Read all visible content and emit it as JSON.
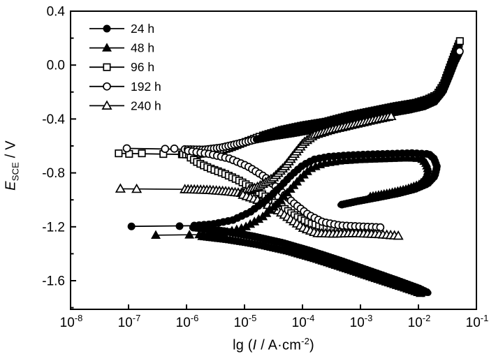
{
  "figure": {
    "background": "#ffffff",
    "accent": "#000000",
    "xlabel_parts": {
      "pre": "lg (",
      "sym": "I",
      "mid": " / A·cm",
      "sup": "-2",
      "post": ")"
    },
    "ylabel_parts": {
      "sym": "E",
      "sub": "SCE",
      "post": " / V"
    }
  },
  "legend": {
    "position": "top-left",
    "items": [
      {
        "label": "24 h",
        "marker": "circle",
        "open": false
      },
      {
        "label": "48 h",
        "marker": "triangle",
        "open": false
      },
      {
        "label": "96 h",
        "marker": "square",
        "open": true
      },
      {
        "label": "192 h",
        "marker": "circle",
        "open": true
      },
      {
        "label": "240 h",
        "marker": "triangle",
        "open": true
      }
    ]
  },
  "chart_data": {
    "type": "line",
    "title": "",
    "xlabel": "lg (I / A·cm⁻²)",
    "ylabel": "E_SCE / V",
    "x_scale": "log10",
    "xlim_exponents": [
      -8,
      -1
    ],
    "ylim": [
      -1.8,
      0.4
    ],
    "grid": false,
    "xticks": [
      -8,
      -7,
      -6,
      -5,
      -4,
      -3,
      -2,
      -1
    ],
    "yticks_major": [
      0.4,
      0.0,
      -0.4,
      -0.8,
      -1.2,
      -1.6
    ],
    "ytick_labels": [
      "0.4",
      "0.0",
      "-0.4",
      "-0.8",
      "-1.2",
      "-1.6"
    ],
    "yticks_minor": [
      0.2,
      -0.2,
      -0.6,
      -1.0,
      -1.4,
      -1.8
    ],
    "series": [
      {
        "name": "96 h",
        "key": "96h",
        "marker": "square",
        "open": true,
        "segments": [
          {
            "role": "ocp-line",
            "pts": [
              [
                -7.17,
                -0.655
              ],
              [
                -6.05,
                -0.663
              ]
            ],
            "line": 1.8,
            "at": [
              [
                -7.17,
                -0.655
              ],
              [
                -6.99,
                -0.659
              ],
              [
                -6.77,
                -0.655
              ],
              [
                -6.4,
                -0.66
              ],
              [
                -6.08,
                -0.662
              ]
            ]
          },
          {
            "role": "anodic-onset",
            "pts": [
              [
                -6.08,
                -0.662
              ],
              [
                -5.9,
                -0.665
              ],
              [
                -5.55,
                -0.65
              ],
              [
                -5.25,
                -0.615
              ],
              [
                -4.95,
                -0.565
              ],
              [
                -4.7,
                -0.525
              ]
            ],
            "line": 1.6,
            "spacing": 4.2
          },
          {
            "role": "anodic",
            "pts": [
              [
                -4.7,
                -0.525
              ],
              [
                -4.35,
                -0.48
              ],
              [
                -4.0,
                -0.448
              ],
              [
                -3.6,
                -0.42
              ],
              [
                -3.2,
                -0.375
              ],
              [
                -2.8,
                -0.34
              ],
              [
                -2.4,
                -0.305
              ],
              [
                -2.05,
                -0.28
              ],
              [
                -1.85,
                -0.255
              ],
              [
                -1.68,
                -0.22
              ],
              [
                -1.56,
                -0.14
              ],
              [
                -1.46,
                -0.02
              ],
              [
                -1.37,
                0.085
              ],
              [
                -1.285,
                0.175
              ]
            ],
            "ribbon": 9.5,
            "top": true,
            "spacing": 4
          },
          {
            "role": "anodic-end",
            "pts": [],
            "at": [
              [
                -1.285,
                0.178
              ]
            ]
          },
          {
            "role": "cathodic",
            "pts": [
              [
                -5.95,
                -0.68
              ],
              [
                -5.8,
                -0.725
              ],
              [
                -5.6,
                -0.765
              ],
              [
                -5.35,
                -0.805
              ],
              [
                -5.1,
                -0.855
              ],
              [
                -4.85,
                -0.915
              ],
              [
                -4.6,
                -0.985
              ],
              [
                -4.35,
                -1.055
              ],
              [
                -4.1,
                -1.125
              ],
              [
                -3.85,
                -1.175
              ],
              [
                -3.6,
                -1.205
              ],
              [
                -3.3,
                -1.22
              ],
              [
                -2.95,
                -1.228
              ],
              [
                -2.68,
                -1.232
              ]
            ],
            "line": 1.6,
            "spacing": 5.5
          }
        ]
      },
      {
        "name": "192 h",
        "key": "192h",
        "marker": "circle",
        "open": true,
        "segments": [
          {
            "role": "ocp-line",
            "pts": [
              [
                -7.03,
                -0.618
              ],
              [
                -6.05,
                -0.625
              ]
            ],
            "line": 1.8,
            "at": [
              [
                -7.03,
                -0.618
              ],
              [
                -6.37,
                -0.622
              ],
              [
                -6.21,
                -0.62
              ]
            ]
          },
          {
            "role": "anodic-onset",
            "pts": [
              [
                -6.05,
                -0.625
              ],
              [
                -5.7,
                -0.628
              ],
              [
                -5.4,
                -0.612
              ],
              [
                -5.1,
                -0.582
              ],
              [
                -4.8,
                -0.552
              ]
            ],
            "line": 1.6,
            "spacing": 4.2
          },
          {
            "role": "anodic",
            "pts": [
              [
                -4.8,
                -0.552
              ],
              [
                -4.5,
                -0.528
              ],
              [
                -4.15,
                -0.505
              ],
              [
                -3.75,
                -0.475
              ],
              [
                -3.35,
                -0.43
              ],
              [
                -2.95,
                -0.395
              ],
              [
                -2.55,
                -0.36
              ],
              [
                -2.15,
                -0.33
              ],
              [
                -1.9,
                -0.305
              ],
              [
                -1.72,
                -0.27
              ],
              [
                -1.58,
                -0.195
              ],
              [
                -1.47,
                -0.08
              ],
              [
                -1.38,
                0.02
              ],
              [
                -1.29,
                0.1
              ]
            ],
            "ribbon": 9.5,
            "top": true,
            "spacing": 4
          },
          {
            "role": "anodic-end",
            "pts": [],
            "at": [
              [
                -1.29,
                0.102
              ]
            ]
          },
          {
            "role": "cathodic",
            "pts": [
              [
                -6.0,
                -0.635
              ],
              [
                -5.6,
                -0.66
              ],
              [
                -5.25,
                -0.695
              ],
              [
                -4.95,
                -0.75
              ],
              [
                -4.65,
                -0.83
              ],
              [
                -4.4,
                -0.925
              ],
              [
                -4.15,
                -1.025
              ],
              [
                -3.9,
                -1.11
              ],
              [
                -3.65,
                -1.165
              ],
              [
                -3.35,
                -1.19
              ],
              [
                -3.0,
                -1.198
              ],
              [
                -2.62,
                -1.205
              ]
            ],
            "line": 1.6,
            "spacing": 6
          }
        ]
      },
      {
        "name": "240 h",
        "key": "240h",
        "marker": "triangle",
        "open": true,
        "segments": [
          {
            "role": "ocp-line",
            "pts": [
              [
                -7.14,
                -0.918
              ],
              [
                -6.05,
                -0.922
              ]
            ],
            "line": 1.6,
            "at": [
              [
                -7.14,
                -0.918
              ],
              [
                -6.86,
                -0.92
              ]
            ]
          },
          {
            "role": "anodic-onset",
            "pts": [
              [
                -6.05,
                -0.922
              ],
              [
                -5.6,
                -0.928
              ],
              [
                -5.3,
                -0.938
              ],
              [
                -5.05,
                -0.95
              ]
            ],
            "line": 1.6,
            "spacing": 4.5
          },
          {
            "role": "anodic",
            "pts": [
              [
                -5.05,
                -0.95
              ],
              [
                -4.75,
                -0.9
              ],
              [
                -4.5,
                -0.835
              ],
              [
                -4.3,
                -0.75
              ],
              [
                -4.13,
                -0.655
              ],
              [
                -3.98,
                -0.575
              ],
              [
                -3.8,
                -0.52
              ],
              [
                -3.5,
                -0.48
              ],
              [
                -3.15,
                -0.445
              ],
              [
                -2.8,
                -0.41
              ],
              [
                -2.45,
                -0.378
              ]
            ],
            "spacing": 4.5
          },
          {
            "role": "cathodic",
            "pts": [
              [
                -5.05,
                -0.96
              ],
              [
                -4.75,
                -1.005
              ],
              [
                -4.45,
                -1.07
              ],
              [
                -4.2,
                -1.145
              ],
              [
                -3.98,
                -1.21
              ],
              [
                -3.75,
                -1.248
              ],
              [
                -3.45,
                -1.252
              ],
              [
                -3.1,
                -1.248
              ],
              [
                -2.7,
                -1.255
              ],
              [
                -2.33,
                -1.268
              ]
            ],
            "line": 1.6,
            "spacing": 5.5
          }
        ]
      },
      {
        "name": "24 h",
        "key": "24h",
        "marker": "circle",
        "open": false,
        "segments": [
          {
            "role": "ocp-line",
            "pts": [
              [
                -6.95,
                -1.197
              ],
              [
                -5.9,
                -1.192
              ]
            ],
            "line": 1.8,
            "at": [
              [
                -6.95,
                -1.197
              ],
              [
                -6.12,
                -1.195
              ]
            ]
          },
          {
            "role": "anodic",
            "pts": [
              [
                -5.9,
                -1.192
              ],
              [
                -5.55,
                -1.18
              ],
              [
                -5.2,
                -1.15
              ],
              [
                -4.9,
                -1.09
              ],
              [
                -4.62,
                -1.0
              ],
              [
                -4.4,
                -0.91
              ],
              [
                -4.2,
                -0.82
              ],
              [
                -4.0,
                -0.745
              ],
              [
                -3.8,
                -0.7
              ],
              [
                -3.55,
                -0.68
              ],
              [
                -3.25,
                -0.67
              ],
              [
                -2.9,
                -0.663
              ],
              [
                -2.5,
                -0.658
              ],
              [
                -2.1,
                -0.653
              ],
              [
                -1.82,
                -0.66
              ]
            ],
            "line": 1.6,
            "spacing": 7
          },
          {
            "role": "reverse-loop",
            "pts": [
              [
                -1.82,
                -0.66
              ],
              [
                -1.73,
                -0.695
              ],
              [
                -1.68,
                -0.755
              ],
              [
                -1.72,
                -0.825
              ],
              [
                -1.84,
                -0.88
              ],
              [
                -2.06,
                -0.92
              ],
              [
                -2.35,
                -0.952
              ],
              [
                -2.7,
                -0.982
              ],
              [
                -3.05,
                -1.01
              ],
              [
                -3.35,
                -1.038
              ]
            ],
            "ribbon": 8,
            "top": true,
            "spacing": 4
          },
          {
            "role": "cathodic",
            "pts": [
              [
                -5.9,
                -1.205
              ],
              [
                -5.35,
                -1.232
              ],
              [
                -4.85,
                -1.27
              ],
              [
                -4.35,
                -1.318
              ],
              [
                -3.85,
                -1.38
              ],
              [
                -3.35,
                -1.45
              ],
              [
                -2.85,
                -1.525
              ],
              [
                -2.35,
                -1.6
              ],
              [
                -2.0,
                -1.655
              ],
              [
                -1.83,
                -1.69
              ]
            ],
            "ribbon": 9,
            "top": true,
            "spacing": 4
          }
        ]
      },
      {
        "name": "48 h",
        "key": "48h",
        "marker": "triangle",
        "open": false,
        "segments": [
          {
            "role": "ocp-line",
            "pts": [
              [
                -6.53,
                -1.262
              ],
              [
                -5.75,
                -1.258
              ]
            ],
            "line": 1.6,
            "at": [
              [
                -6.53,
                -1.262
              ],
              [
                -5.95,
                -1.26
              ],
              [
                -5.78,
                -1.258
              ]
            ]
          },
          {
            "role": "anodic",
            "pts": [
              [
                -5.75,
                -1.258
              ],
              [
                -5.35,
                -1.245
              ],
              [
                -5.0,
                -1.205
              ],
              [
                -4.7,
                -1.13
              ],
              [
                -4.45,
                -1.035
              ],
              [
                -4.25,
                -0.94
              ],
              [
                -4.05,
                -0.845
              ],
              [
                -3.87,
                -0.77
              ],
              [
                -3.65,
                -0.73
              ],
              [
                -3.35,
                -0.71
              ],
              [
                -3.0,
                -0.7
              ],
              [
                -2.6,
                -0.694
              ],
              [
                -2.2,
                -0.688
              ],
              [
                -1.95,
                -0.693
              ]
            ],
            "line": 1.6,
            "spacing": 7
          },
          {
            "role": "reverse-loop",
            "pts": [
              [
                -1.95,
                -0.693
              ],
              [
                -1.87,
                -0.725
              ],
              [
                -1.83,
                -0.78
              ],
              [
                -1.87,
                -0.838
              ],
              [
                -1.98,
                -0.885
              ],
              [
                -2.2,
                -0.92
              ],
              [
                -2.5,
                -0.95
              ],
              [
                -2.85,
                -0.978
              ]
            ],
            "ribbon": 7,
            "top": true,
            "spacing": 4
          },
          {
            "role": "cathodic",
            "pts": [
              [
                -5.75,
                -1.27
              ],
              [
                -5.25,
                -1.295
              ],
              [
                -4.75,
                -1.33
              ],
              [
                -4.25,
                -1.378
              ],
              [
                -3.75,
                -1.44
              ],
              [
                -3.25,
                -1.51
              ],
              [
                -2.75,
                -1.582
              ],
              [
                -2.25,
                -1.652
              ],
              [
                -1.92,
                -1.7
              ]
            ],
            "ribbon": 8,
            "top": true,
            "spacing": 4
          }
        ]
      }
    ]
  }
}
